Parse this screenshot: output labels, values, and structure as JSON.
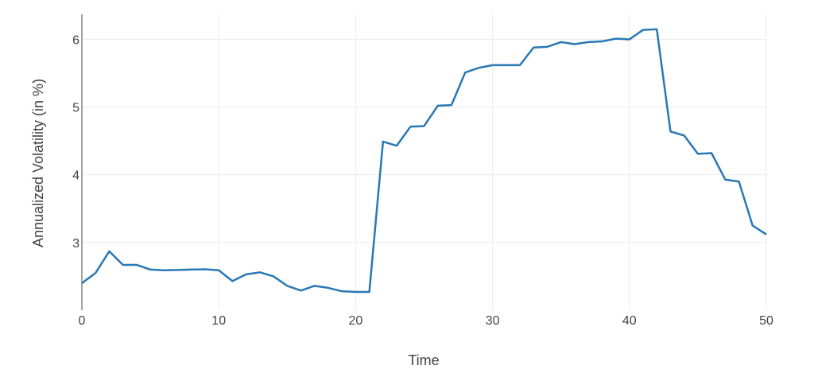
{
  "chart_data": {
    "type": "line",
    "title": "",
    "xlabel": "Time",
    "ylabel": "Annualized Volatility (in %)",
    "xlim": [
      0,
      50
    ],
    "ylim": [
      2.0,
      6.37
    ],
    "x_ticks": [
      0,
      10,
      20,
      30,
      40,
      50
    ],
    "y_ticks": [
      3,
      4,
      5,
      6
    ],
    "grid": true,
    "line_color": "#2878b5",
    "series": [
      {
        "x": [
          0,
          1,
          2,
          3,
          4,
          5,
          6,
          7,
          8,
          9,
          10,
          11,
          12,
          13,
          14,
          15,
          16,
          17,
          18,
          19,
          20,
          21,
          22,
          23,
          24,
          25,
          26,
          27,
          28,
          29,
          30,
          31,
          32,
          33,
          34,
          35,
          36,
          37,
          38,
          39,
          40,
          41,
          42,
          43,
          44,
          45,
          46,
          47,
          48,
          49,
          50
        ],
        "values": [
          2.4,
          2.55,
          2.87,
          2.67,
          2.67,
          2.6,
          2.59,
          2.595,
          2.6,
          2.605,
          2.59,
          2.43,
          2.53,
          2.56,
          2.5,
          2.36,
          2.29,
          2.36,
          2.33,
          2.28,
          2.27,
          2.27,
          4.49,
          4.43,
          4.71,
          4.72,
          5.02,
          5.03,
          5.51,
          5.58,
          5.62,
          5.62,
          5.62,
          5.88,
          5.89,
          5.96,
          5.93,
          5.96,
          5.97,
          6.01,
          6.0,
          6.14,
          6.15,
          4.64,
          4.58,
          4.31,
          4.32,
          3.93,
          3.9,
          3.25,
          3.12
        ]
      }
    ]
  }
}
